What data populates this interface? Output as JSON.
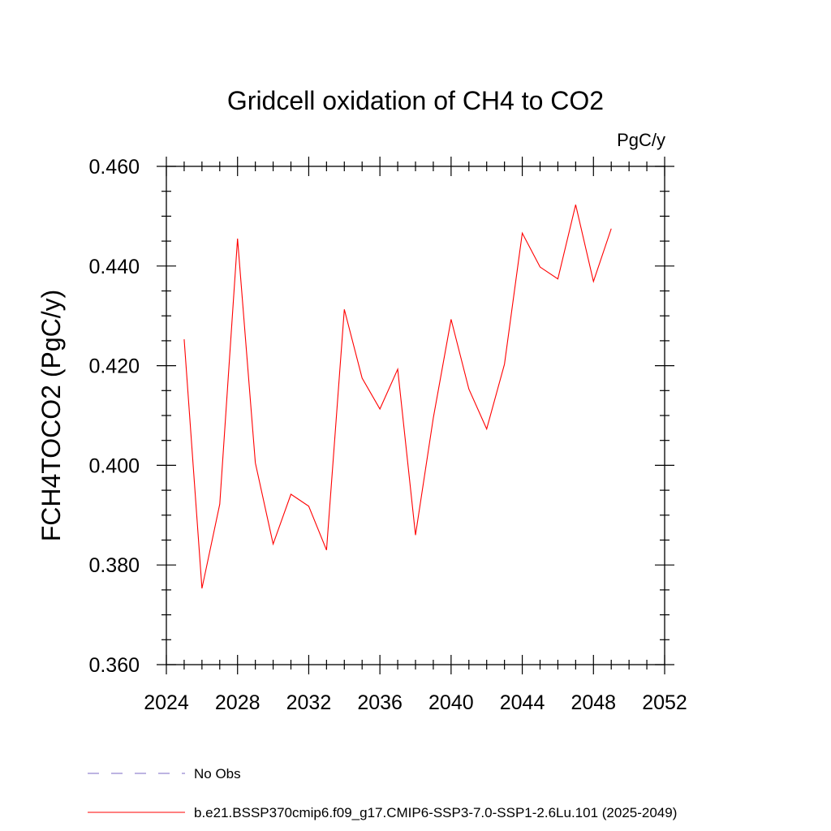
{
  "chart_data": {
    "type": "line",
    "title": "Gridcell oxidation of CH4 to CO2",
    "units_label": "PgC/y",
    "xlabel": "",
    "ylabel": "FCH4TOCO2  (PgC/y)",
    "xlim": [
      2024,
      2052
    ],
    "ylim": [
      0.36,
      0.46
    ],
    "x_ticks": [
      2024,
      2028,
      2032,
      2036,
      2040,
      2044,
      2048,
      2052
    ],
    "x_tick_labels": [
      "2024",
      "2028",
      "2032",
      "2036",
      "2040",
      "2044",
      "2048",
      "2052"
    ],
    "x_minor_step": 1,
    "y_ticks": [
      0.36,
      0.38,
      0.4,
      0.42,
      0.44,
      0.46
    ],
    "y_tick_labels": [
      "0.360",
      "0.380",
      "0.400",
      "0.420",
      "0.440",
      "0.460"
    ],
    "y_minor_step": 0.005,
    "grid": false,
    "series": [
      {
        "name": "b.e21.BSSP370cmip6.f09_g17.CMIP6-SSP3-7.0-SSP1-2.6Lu.101 (2025-2049)",
        "color": "#ff0000",
        "style": "solid",
        "x": [
          2025,
          2026,
          2027,
          2028,
          2029,
          2030,
          2031,
          2032,
          2033,
          2034,
          2035,
          2036,
          2037,
          2038,
          2039,
          2040,
          2041,
          2042,
          2043,
          2044,
          2045,
          2046,
          2047,
          2048,
          2049
        ],
        "y": [
          0.4253,
          0.3753,
          0.3922,
          0.4455,
          0.4005,
          0.3842,
          0.3942,
          0.3918,
          0.383,
          0.4313,
          0.4175,
          0.4113,
          0.4193,
          0.386,
          0.4095,
          0.4293,
          0.4153,
          0.4073,
          0.4203,
          0.4466,
          0.4398,
          0.4374,
          0.4523,
          0.4369,
          0.4475
        ]
      }
    ],
    "legend": [
      {
        "label": "No Obs",
        "color": "#7b68c6",
        "style": "dashed"
      },
      {
        "label": "b.e21.BSSP370cmip6.f09_g17.CMIP6-SSP3-7.0-SSP1-2.6Lu.101 (2025-2049)",
        "color": "#ff0000",
        "style": "solid"
      }
    ],
    "legend_position": "bottom"
  }
}
